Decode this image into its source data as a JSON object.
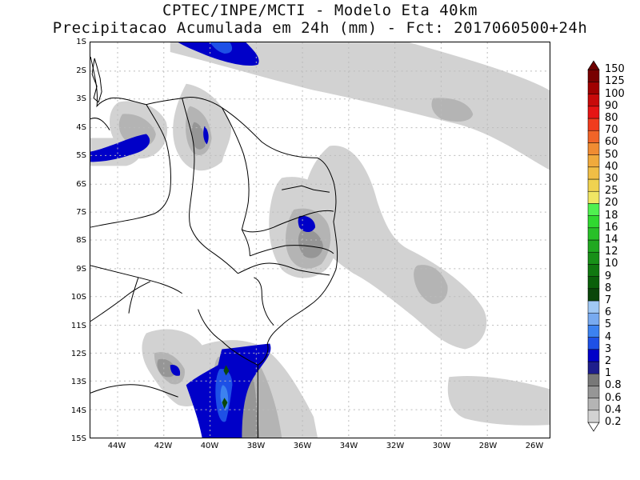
{
  "title": {
    "line1": "CPTEC/INPE/MCTI - Modelo Eta 40km",
    "line2": "Precipitacao Acumulada em 24h (mm) - Fct: 2017060500+24h"
  },
  "map": {
    "lat_ticks": [
      "1S",
      "2S",
      "3S",
      "4S",
      "5S",
      "6S",
      "7S",
      "8S",
      "9S",
      "10S",
      "11S",
      "12S",
      "13S",
      "14S",
      "15S"
    ],
    "lon_ticks": [
      "44W",
      "42W",
      "40W",
      "38W",
      "36W",
      "34W",
      "32W",
      "30W",
      "28W",
      "26W"
    ],
    "lat_range": [
      -15,
      -1
    ],
    "lon_range": [
      -45,
      -25
    ],
    "grid": "dotted",
    "grid_color": "#bbbbbb",
    "coast_color": "#000000"
  },
  "colorbar": {
    "levels": [
      "0.2",
      "0.4",
      "0.6",
      "0.8",
      "1",
      "2",
      "3",
      "4",
      "5",
      "6",
      "7",
      "8",
      "9",
      "10",
      "12",
      "14",
      "16",
      "18",
      "20",
      "25",
      "30",
      "40",
      "50",
      "60",
      "70",
      "80",
      "90",
      "100",
      "125",
      "150"
    ],
    "colors": [
      "#ffffff",
      "#d2d2d2",
      "#b4b4b4",
      "#969696",
      "#787878",
      "#1e1e8c",
      "#0000c8",
      "#1e50e6",
      "#3c82f0",
      "#78aaf0",
      "#a0c8f5",
      "#0a460a",
      "#0a600a",
      "#107810",
      "#189018",
      "#20a820",
      "#28c028",
      "#30d830",
      "#50f050",
      "#f0e664",
      "#f0d250",
      "#f0be46",
      "#f0aa3c",
      "#f08c32",
      "#f06428",
      "#f03c1e",
      "#e61414",
      "#c80a0a",
      "#a00000",
      "#780000"
    ],
    "top_cap_color": "#6e0000"
  }
}
